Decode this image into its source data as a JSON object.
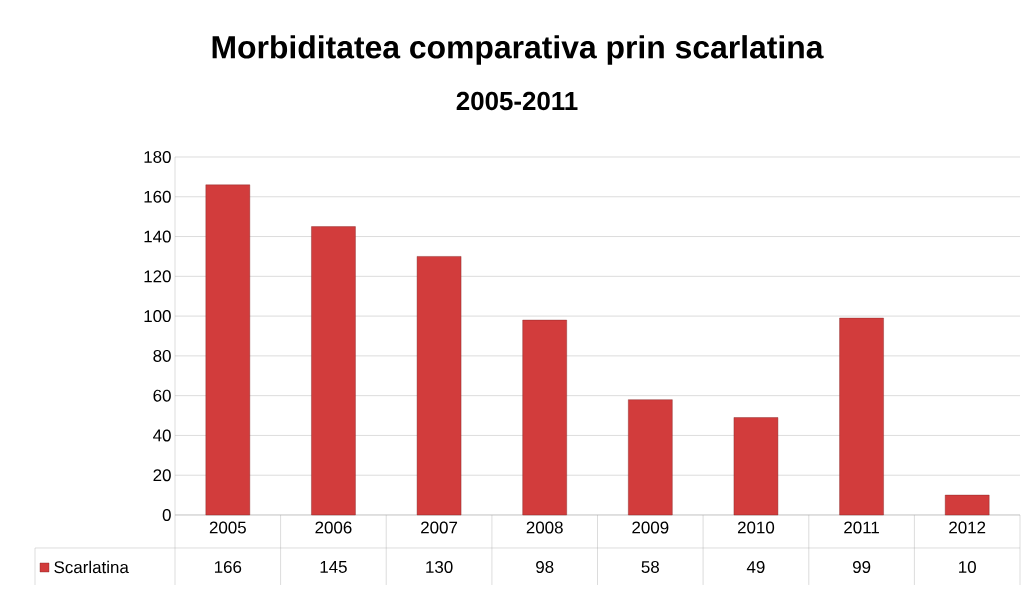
{
  "chart_data": {
    "type": "bar",
    "title": "Morbiditatea comparativa prin scarlatina",
    "subtitle": "2005-2011",
    "categories": [
      "2005",
      "2006",
      "2007",
      "2008",
      "2009",
      "2010",
      "2011",
      "2012"
    ],
    "series": [
      {
        "name": "Scarlatina",
        "color": "#d23c3c",
        "values": [
          166,
          145,
          130,
          98,
          58,
          49,
          99,
          10
        ]
      }
    ],
    "ylim": [
      0,
      180
    ],
    "yticks": [
      0,
      20,
      40,
      60,
      80,
      100,
      120,
      140,
      160,
      180
    ],
    "grid": "y",
    "data_labels": true,
    "legend": "bottom left"
  }
}
